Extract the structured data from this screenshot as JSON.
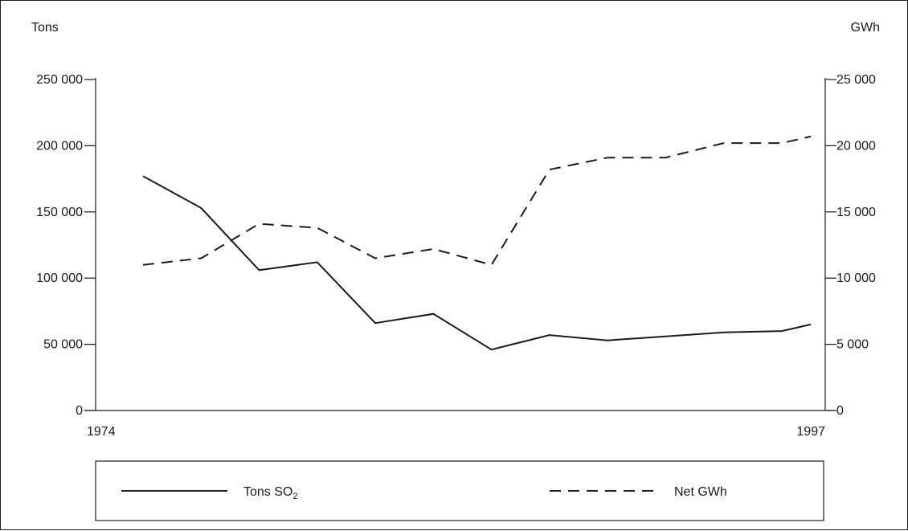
{
  "chart_data": {
    "type": "line",
    "x_range": [
      1974,
      1997
    ],
    "x_tick_labels": [
      "1974",
      "1997"
    ],
    "left_axis": {
      "label": "Tons",
      "ylim": [
        0,
        250000
      ],
      "ticks": [
        0,
        50000,
        100000,
        150000,
        200000,
        250000
      ],
      "tick_labels": [
        "0",
        "50 000",
        "100 000",
        "150 000",
        "200 000",
        "250 000"
      ]
    },
    "right_axis": {
      "label": "GWh",
      "ylim": [
        0,
        25000
      ],
      "ticks": [
        0,
        5000,
        10000,
        15000,
        20000,
        25000
      ],
      "tick_labels": [
        "0",
        "5 000",
        "10 000",
        "15 000",
        "20 000",
        "25 000"
      ]
    },
    "series": [
      {
        "name": "Tons SO2",
        "legend_main": "Tons SO",
        "legend_sub": "2",
        "axis": "left",
        "style": "solid",
        "x": [
          1974,
          1976,
          1978,
          1980,
          1982,
          1984,
          1986,
          1988,
          1990,
          1992,
          1994,
          1996,
          1997
        ],
        "values": [
          177000,
          153000,
          106000,
          112000,
          66000,
          73000,
          46000,
          57000,
          53000,
          56000,
          59000,
          60000,
          65000
        ]
      },
      {
        "name": "Net GWh",
        "legend_main": "Net GWh",
        "legend_sub": "",
        "axis": "right",
        "style": "dashed",
        "x": [
          1974,
          1976,
          1978,
          1980,
          1982,
          1984,
          1986,
          1988,
          1990,
          1992,
          1994,
          1996,
          1997
        ],
        "values": [
          11000,
          11500,
          14100,
          13800,
          11500,
          12200,
          11000,
          18200,
          19100,
          19100,
          20200,
          20200,
          20700
        ]
      }
    ],
    "grid": false,
    "legend_position": "bottom"
  }
}
